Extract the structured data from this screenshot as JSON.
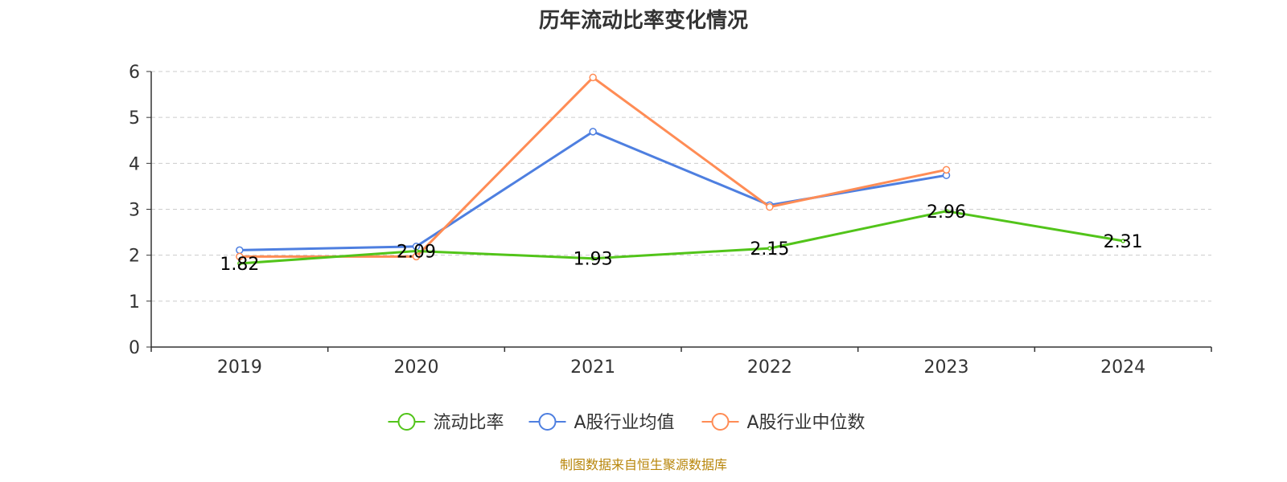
{
  "source_note": "制图数据来自恒生聚源数据库",
  "chart_data": {
    "type": "line",
    "title": "历年流动比率变化情况",
    "xlabel": "",
    "ylabel": "",
    "categories": [
      "2019",
      "2020",
      "2021",
      "2022",
      "2023",
      "2024"
    ],
    "ylim": [
      0,
      6
    ],
    "yticks": [
      0,
      1,
      2,
      3,
      4,
      5,
      6
    ],
    "grid": true,
    "legend_position": "bottom",
    "series": [
      {
        "name": "流动比率",
        "color": "#52c41a",
        "values": [
          1.82,
          2.09,
          1.93,
          2.15,
          2.96,
          2.31
        ],
        "labels": [
          "1.82",
          "2.09",
          "1.93",
          "2.15",
          "2.96",
          "2.31"
        ],
        "show_points": false
      },
      {
        "name": "A股行业均值",
        "color": "#4e7fe0",
        "values": [
          2.11,
          2.19,
          4.69,
          3.09,
          3.74,
          null
        ],
        "show_points": true
      },
      {
        "name": "A股行业中位数",
        "color": "#ff8c55",
        "values": [
          1.97,
          1.97,
          5.87,
          3.05,
          3.86,
          null
        ],
        "show_points": true
      }
    ]
  }
}
